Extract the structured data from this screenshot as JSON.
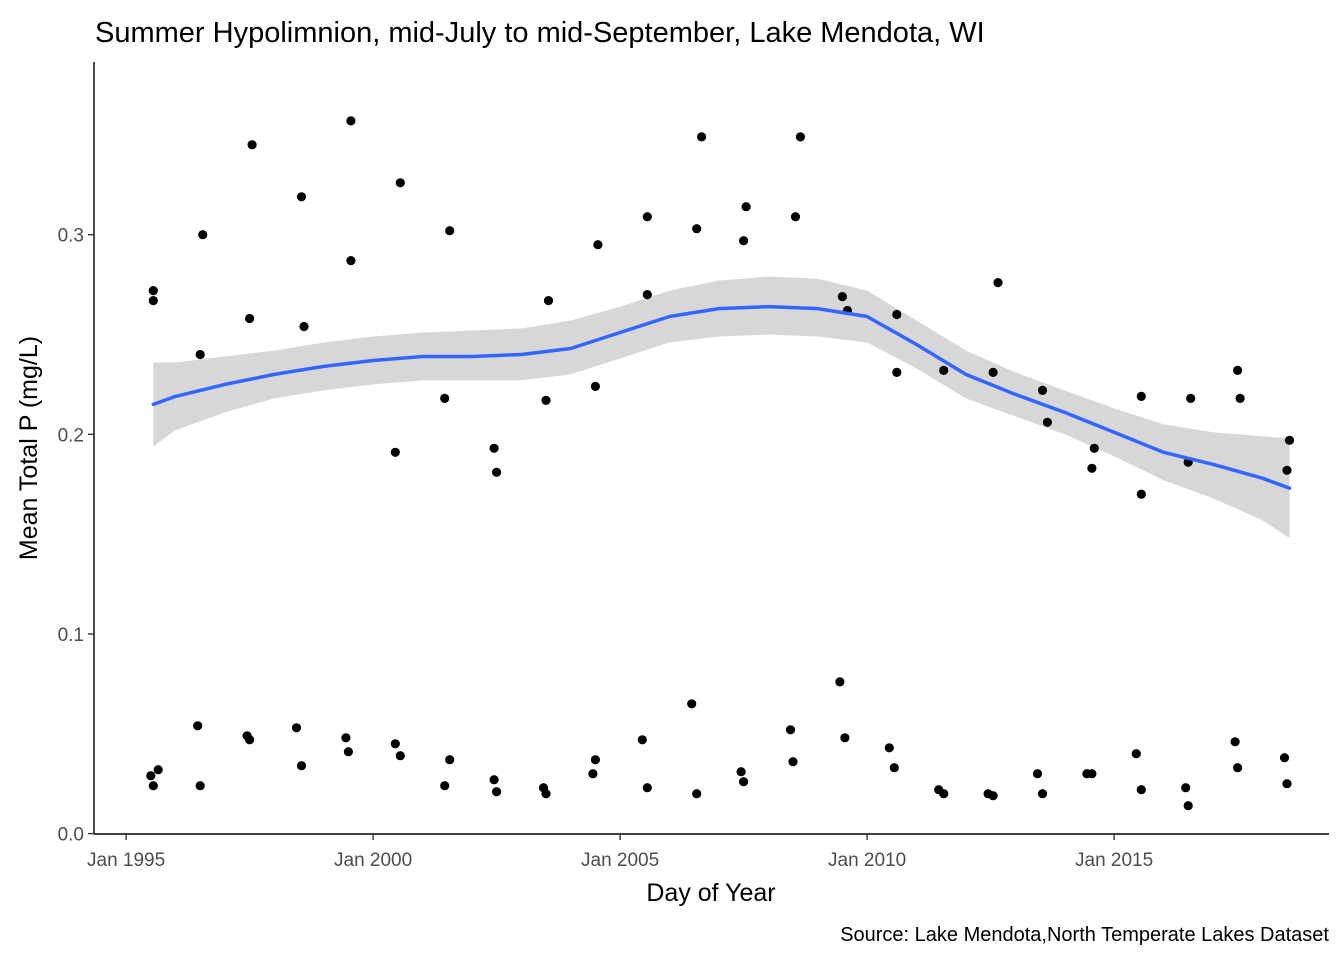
{
  "chart_data": {
    "type": "scatter",
    "title": "Summer Hypolimnion, mid-July to mid-September, Lake Mendota, WI",
    "xlabel": "Day of Year",
    "ylabel": "Mean Total P (mg/L)",
    "caption": "Source: Lake Mendota,North Temperate Lakes Dataset",
    "x_ticks": [
      {
        "label": "Jan 1995",
        "value": 1995.0
      },
      {
        "label": "Jan 2000",
        "value": 2000.0
      },
      {
        "label": "Jan 2005",
        "value": 2005.0
      },
      {
        "label": "Jan 2010",
        "value": 2010.0
      },
      {
        "label": "Jan 2015",
        "value": 2015.0
      }
    ],
    "y_ticks": [
      {
        "label": "0.0",
        "value": 0.0
      },
      {
        "label": "0.1",
        "value": 0.1
      },
      {
        "label": "0.2",
        "value": 0.2
      },
      {
        "label": "0.3",
        "value": 0.3
      }
    ],
    "xlim": [
      1994.35,
      2019.35
    ],
    "ylim": [
      -0.0002,
      0.3865
    ],
    "grid": false,
    "point_color": "#000000",
    "smooth_color": "#3366ff",
    "ribbon_color": "#d3d3d3",
    "points": [
      [
        1995.55,
        0.272
      ],
      [
        1995.55,
        0.267
      ],
      [
        1996.55,
        0.3
      ],
      [
        1996.5,
        0.24
      ],
      [
        1997.55,
        0.345
      ],
      [
        1997.5,
        0.258
      ],
      [
        1998.55,
        0.319
      ],
      [
        1998.6,
        0.254
      ],
      [
        1999.55,
        0.357
      ],
      [
        1999.55,
        0.287
      ],
      [
        2000.55,
        0.326
      ],
      [
        2000.45,
        0.191
      ],
      [
        2001.55,
        0.302
      ],
      [
        2001.45,
        0.218
      ],
      [
        2002.45,
        0.193
      ],
      [
        2002.5,
        0.181
      ],
      [
        2003.55,
        0.267
      ],
      [
        2003.5,
        0.217
      ],
      [
        2004.55,
        0.295
      ],
      [
        2004.5,
        0.224
      ],
      [
        2005.55,
        0.309
      ],
      [
        2005.55,
        0.27
      ],
      [
        2006.55,
        0.303
      ],
      [
        2006.65,
        0.349
      ],
      [
        2007.5,
        0.297
      ],
      [
        2007.55,
        0.314
      ],
      [
        2008.55,
        0.309
      ],
      [
        2008.65,
        0.349
      ],
      [
        2009.5,
        0.269
      ],
      [
        2009.6,
        0.262
      ],
      [
        2010.6,
        0.26
      ],
      [
        2010.6,
        0.231
      ],
      [
        2011.55,
        0.232
      ],
      [
        2012.55,
        0.231
      ],
      [
        2012.65,
        0.276
      ],
      [
        2013.55,
        0.222
      ],
      [
        2013.65,
        0.206
      ],
      [
        2014.55,
        0.183
      ],
      [
        2014.6,
        0.193
      ],
      [
        2015.55,
        0.219
      ],
      [
        2015.55,
        0.17
      ],
      [
        2016.5,
        0.186
      ],
      [
        2016.55,
        0.218
      ],
      [
        2017.5,
        0.232
      ],
      [
        2017.55,
        0.218
      ],
      [
        2018.5,
        0.182
      ],
      [
        2018.55,
        0.197
      ],
      [
        1995.5,
        0.029
      ],
      [
        1995.55,
        0.024
      ],
      [
        1995.65,
        0.032
      ],
      [
        1996.45,
        0.054
      ],
      [
        1996.5,
        0.024
      ],
      [
        1997.45,
        0.049
      ],
      [
        1997.5,
        0.047
      ],
      [
        1998.45,
        0.053
      ],
      [
        1998.55,
        0.034
      ],
      [
        1999.45,
        0.048
      ],
      [
        1999.5,
        0.041
      ],
      [
        2000.45,
        0.045
      ],
      [
        2000.55,
        0.039
      ],
      [
        2001.45,
        0.024
      ],
      [
        2001.55,
        0.037
      ],
      [
        2002.45,
        0.027
      ],
      [
        2002.5,
        0.021
      ],
      [
        2003.45,
        0.023
      ],
      [
        2003.5,
        0.02
      ],
      [
        2004.45,
        0.03
      ],
      [
        2004.5,
        0.037
      ],
      [
        2005.45,
        0.047
      ],
      [
        2005.55,
        0.023
      ],
      [
        2006.45,
        0.065
      ],
      [
        2006.55,
        0.02
      ],
      [
        2007.45,
        0.031
      ],
      [
        2007.5,
        0.026
      ],
      [
        2008.45,
        0.052
      ],
      [
        2008.5,
        0.036
      ],
      [
        2009.45,
        0.076
      ],
      [
        2009.55,
        0.048
      ],
      [
        2010.45,
        0.043
      ],
      [
        2010.55,
        0.033
      ],
      [
        2011.45,
        0.022
      ],
      [
        2011.55,
        0.02
      ],
      [
        2012.45,
        0.02
      ],
      [
        2012.55,
        0.019
      ],
      [
        2013.45,
        0.03
      ],
      [
        2013.55,
        0.02
      ],
      [
        2014.45,
        0.03
      ],
      [
        2014.55,
        0.03
      ],
      [
        2015.45,
        0.04
      ],
      [
        2015.55,
        0.022
      ],
      [
        2016.45,
        0.023
      ],
      [
        2016.5,
        0.014
      ],
      [
        2017.45,
        0.046
      ],
      [
        2017.5,
        0.033
      ],
      [
        2018.45,
        0.038
      ],
      [
        2018.5,
        0.025
      ]
    ],
    "smooth": [
      [
        1995.55,
        0.215
      ],
      [
        1996.0,
        0.219
      ],
      [
        1997.0,
        0.225
      ],
      [
        1998.0,
        0.23
      ],
      [
        1999.0,
        0.234
      ],
      [
        2000.0,
        0.237
      ],
      [
        2001.0,
        0.239
      ],
      [
        2002.0,
        0.239
      ],
      [
        2003.0,
        0.24
      ],
      [
        2004.0,
        0.243
      ],
      [
        2005.0,
        0.251
      ],
      [
        2006.0,
        0.259
      ],
      [
        2007.0,
        0.263
      ],
      [
        2008.0,
        0.264
      ],
      [
        2009.0,
        0.263
      ],
      [
        2010.0,
        0.259
      ],
      [
        2011.0,
        0.245
      ],
      [
        2012.0,
        0.23
      ],
      [
        2013.0,
        0.22
      ],
      [
        2014.0,
        0.211
      ],
      [
        2015.0,
        0.201
      ],
      [
        2016.0,
        0.191
      ],
      [
        2017.0,
        0.185
      ],
      [
        2018.0,
        0.178
      ],
      [
        2018.55,
        0.173
      ]
    ],
    "ribbon_upper": [
      [
        1995.55,
        0.236
      ],
      [
        1996.0,
        0.236
      ],
      [
        1997.0,
        0.239
      ],
      [
        1998.0,
        0.242
      ],
      [
        1999.0,
        0.246
      ],
      [
        2000.0,
        0.249
      ],
      [
        2001.0,
        0.251
      ],
      [
        2002.0,
        0.252
      ],
      [
        2003.0,
        0.253
      ],
      [
        2004.0,
        0.257
      ],
      [
        2005.0,
        0.264
      ],
      [
        2006.0,
        0.272
      ],
      [
        2007.0,
        0.277
      ],
      [
        2008.0,
        0.279
      ],
      [
        2009.0,
        0.278
      ],
      [
        2010.0,
        0.272
      ],
      [
        2011.0,
        0.257
      ],
      [
        2012.0,
        0.242
      ],
      [
        2013.0,
        0.231
      ],
      [
        2014.0,
        0.222
      ],
      [
        2015.0,
        0.213
      ],
      [
        2016.0,
        0.205
      ],
      [
        2017.0,
        0.201
      ],
      [
        2018.0,
        0.199
      ],
      [
        2018.55,
        0.198
      ]
    ],
    "ribbon_lower": [
      [
        1995.55,
        0.194
      ],
      [
        1996.0,
        0.202
      ],
      [
        1997.0,
        0.211
      ],
      [
        1998.0,
        0.218
      ],
      [
        1999.0,
        0.222
      ],
      [
        2000.0,
        0.225
      ],
      [
        2001.0,
        0.227
      ],
      [
        2002.0,
        0.227
      ],
      [
        2003.0,
        0.227
      ],
      [
        2004.0,
        0.23
      ],
      [
        2005.0,
        0.238
      ],
      [
        2006.0,
        0.246
      ],
      [
        2007.0,
        0.249
      ],
      [
        2008.0,
        0.25
      ],
      [
        2009.0,
        0.249
      ],
      [
        2010.0,
        0.246
      ],
      [
        2011.0,
        0.233
      ],
      [
        2012.0,
        0.218
      ],
      [
        2013.0,
        0.209
      ],
      [
        2014.0,
        0.2
      ],
      [
        2015.0,
        0.189
      ],
      [
        2016.0,
        0.177
      ],
      [
        2017.0,
        0.168
      ],
      [
        2018.0,
        0.157
      ],
      [
        2018.55,
        0.148
      ]
    ]
  }
}
